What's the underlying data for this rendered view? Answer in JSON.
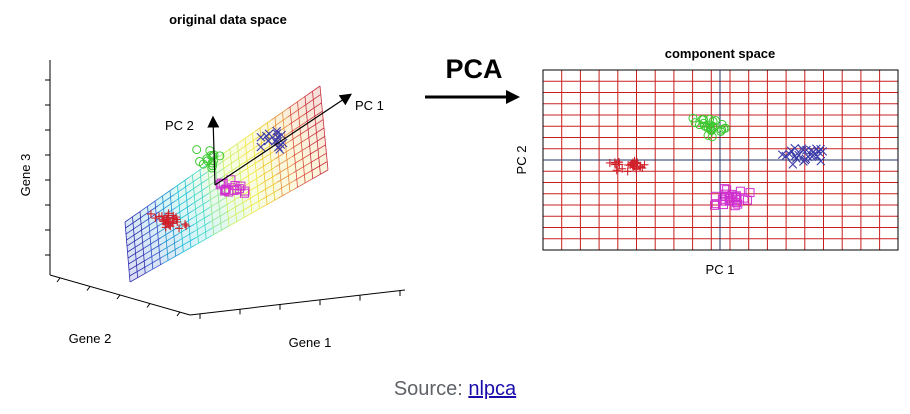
{
  "left_panel": {
    "title": "original data space",
    "axis_x": "Gene 1",
    "axis_y": "Gene 2",
    "axis_z": "Gene 3",
    "pc1": "PC 1",
    "pc2": "PC 2"
  },
  "arrow": {
    "label": "PCA"
  },
  "right_panel": {
    "title": "component space",
    "xlabel": "PC 1",
    "ylabel": "PC 2"
  },
  "caption": {
    "prefix": "Source: ",
    "link_text": "nlpca"
  },
  "colors": {
    "cluster_red": "#d0202a",
    "cluster_green": "#3cc830",
    "cluster_blue": "#3a3aa8",
    "cluster_magenta": "#d030d0",
    "grid_red": "#c82020"
  }
}
